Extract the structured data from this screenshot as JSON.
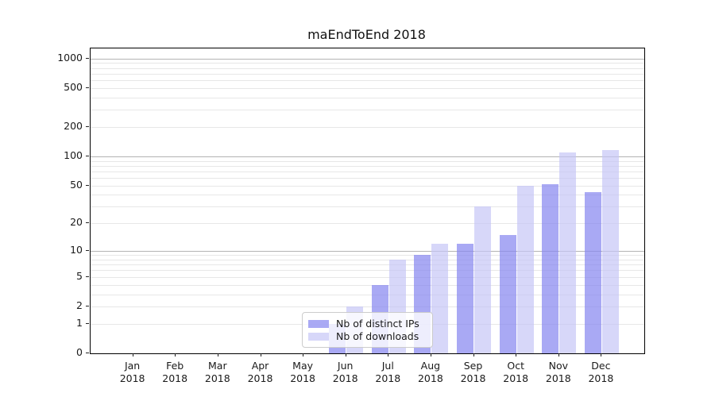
{
  "chart_data": {
    "type": "bar",
    "title": "maEndToEnd 2018",
    "categories": [
      "Jan",
      "Feb",
      "Mar",
      "Apr",
      "May",
      "Jun",
      "Jul",
      "Aug",
      "Sep",
      "Oct",
      "Nov",
      "Dec"
    ],
    "xtick_year": "2018",
    "series": [
      {
        "name": "Nb of distinct IPs",
        "color": "#8888f0",
        "alpha": 0.72,
        "values": [
          0,
          0,
          0,
          0,
          0,
          1,
          4,
          9,
          12,
          15,
          52,
          43
        ]
      },
      {
        "name": "Nb of downloads",
        "color": "#c4c4f6",
        "alpha": 0.68,
        "values": [
          0,
          0,
          0,
          0,
          0,
          2,
          8,
          12,
          30,
          50,
          110,
          115
        ]
      }
    ],
    "yticks": [
      0,
      1,
      2,
      5,
      10,
      20,
      50,
      100,
      200,
      500,
      1000
    ],
    "scale": "log1p",
    "ylim": [
      0,
      1300
    ],
    "grid": true,
    "grid_major_at": [
      10,
      100,
      1000
    ],
    "legend_position": "lower center-left inside plot",
    "xlabel": "",
    "ylabel": ""
  }
}
